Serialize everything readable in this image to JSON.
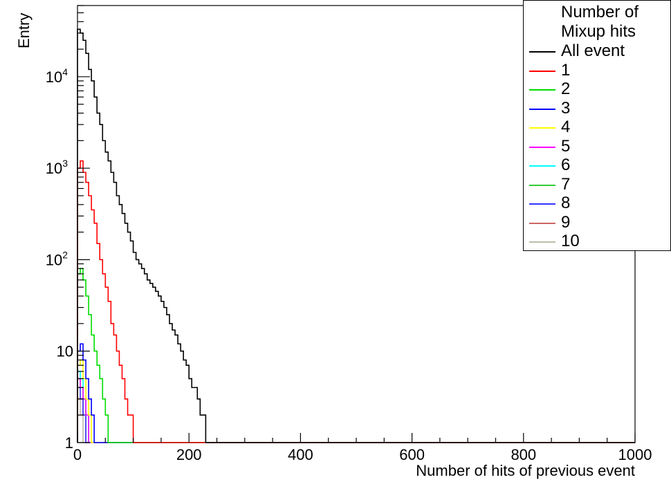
{
  "chart_data": {
    "type": "histogram",
    "xlabel": "Number of hits of previous event",
    "ylabel": "Entry",
    "xlim": [
      0,
      1000
    ],
    "ylim": [
      1,
      60000
    ],
    "yscale": "log",
    "x_ticks": [
      "0",
      "200",
      "400",
      "600",
      "800",
      "1000"
    ],
    "y_ticks": [
      {
        "value": 1,
        "label": "1"
      },
      {
        "value": 10,
        "label": "10"
      },
      {
        "value": 100,
        "label": "10",
        "exp": "2"
      },
      {
        "value": 1000,
        "label": "10",
        "exp": "3"
      },
      {
        "value": 10000,
        "label": "10",
        "exp": "4"
      }
    ],
    "bin_width": 5,
    "legend": {
      "title": [
        "Number of",
        "Mixup hits"
      ],
      "placement": "top-right"
    },
    "series": [
      {
        "name": "All event",
        "color": "#000000",
        "values": [
          33000,
          30000,
          25000,
          18000,
          12000,
          9000,
          6000,
          4000,
          3000,
          2000,
          1500,
          1200,
          900,
          700,
          500,
          400,
          320,
          250,
          200,
          160,
          120,
          100,
          90,
          80,
          70,
          60,
          55,
          50,
          45,
          40,
          35,
          30,
          25,
          20,
          17,
          15,
          12,
          10,
          8,
          7,
          5,
          4,
          4,
          3,
          2,
          2,
          1,
          1,
          1,
          1,
          1,
          1,
          1
        ]
      },
      {
        "name": "1",
        "color": "#ff0000",
        "values": [
          1000,
          1200,
          900,
          700,
          500,
          350,
          250,
          150,
          100,
          70,
          50,
          35,
          20,
          15,
          10,
          7,
          5,
          3,
          2,
          2,
          1,
          1,
          1,
          1
        ]
      },
      {
        "name": "2",
        "color": "#00dd00",
        "values": [
          70,
          80,
          60,
          40,
          25,
          15,
          10,
          7,
          5,
          3,
          2,
          1
        ]
      },
      {
        "name": "3",
        "color": "#0000ff",
        "values": [
          10,
          12,
          8,
          5,
          3,
          2,
          1,
          1,
          1,
          1
        ]
      },
      {
        "name": "4",
        "color": "#ffff00",
        "values": [
          7,
          8,
          5,
          3,
          2,
          1
        ]
      },
      {
        "name": "5",
        "color": "#ff00ff",
        "values": [
          5,
          4,
          3,
          2,
          1
        ]
      },
      {
        "name": "6",
        "color": "#00ffff",
        "values": [
          6,
          5,
          3,
          2,
          1
        ]
      },
      {
        "name": "7",
        "color": "#33cc33",
        "values": [
          5,
          4,
          3,
          2,
          1
        ]
      },
      {
        "name": "8",
        "color": "#3333ff",
        "values": [
          4,
          3,
          2,
          1
        ]
      },
      {
        "name": "9",
        "color": "#cc6666",
        "values": [
          3,
          3,
          2,
          1
        ]
      },
      {
        "name": "10",
        "color": "#bbbbaa",
        "values": [
          3,
          2,
          1
        ]
      }
    ]
  }
}
